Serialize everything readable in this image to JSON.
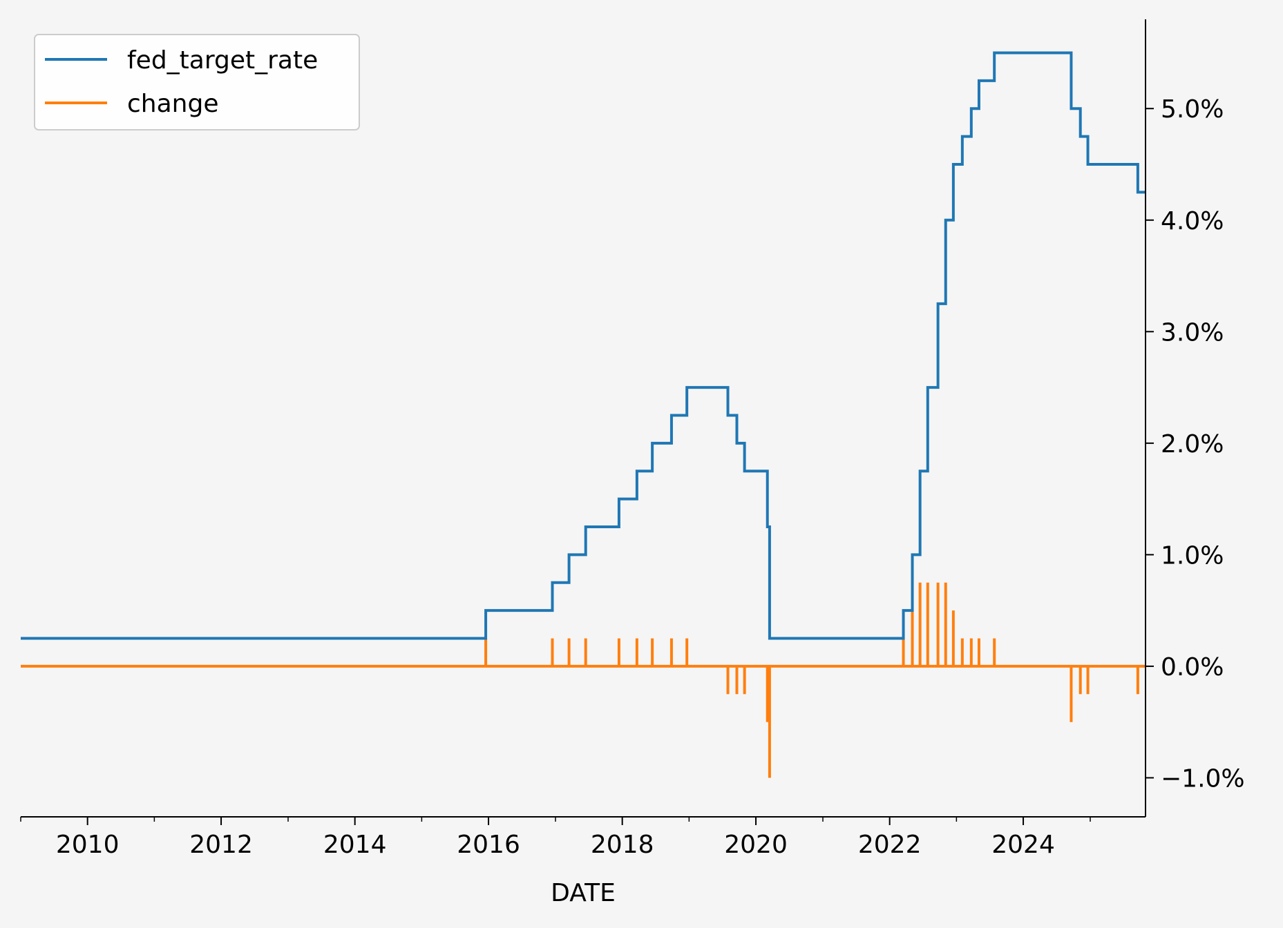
{
  "chart_data": {
    "type": "line",
    "title": "",
    "xlabel": "DATE",
    "ylabel": "",
    "xlim": [
      "2009-01-01",
      "2025-10-30"
    ],
    "ylim": [
      -1.35,
      5.8
    ],
    "y_axis_position": "right",
    "y_tick_format": "percent",
    "x_ticks": [
      "2010",
      "2012",
      "2014",
      "2016",
      "2018",
      "2020",
      "2022",
      "2024"
    ],
    "y_ticks": [
      -1.0,
      0.0,
      1.0,
      2.0,
      3.0,
      4.0,
      5.0
    ],
    "y_tick_labels": [
      "−1.0%",
      "0.0%",
      "1.0%",
      "2.0%",
      "3.0%",
      "4.0%",
      "5.0%"
    ],
    "grid": false,
    "legend_position": "top-left",
    "series": [
      {
        "name": "fed_target_rate",
        "color": "#1f77b4",
        "step": true,
        "points": [
          [
            "2009-01-01",
            0.25
          ],
          [
            "2015-12-17",
            0.5
          ],
          [
            "2016-12-15",
            0.75
          ],
          [
            "2017-03-16",
            1.0
          ],
          [
            "2017-06-15",
            1.25
          ],
          [
            "2017-12-14",
            1.5
          ],
          [
            "2018-03-22",
            1.75
          ],
          [
            "2018-06-14",
            2.0
          ],
          [
            "2018-09-27",
            2.25
          ],
          [
            "2018-12-20",
            2.5
          ],
          [
            "2019-08-01",
            2.25
          ],
          [
            "2019-09-19",
            2.0
          ],
          [
            "2019-10-31",
            1.75
          ],
          [
            "2020-03-04",
            1.25
          ],
          [
            "2020-03-16",
            0.25
          ],
          [
            "2022-03-17",
            0.5
          ],
          [
            "2022-05-05",
            1.0
          ],
          [
            "2022-06-16",
            1.75
          ],
          [
            "2022-07-28",
            2.5
          ],
          [
            "2022-09-22",
            3.25
          ],
          [
            "2022-11-03",
            4.0
          ],
          [
            "2022-12-15",
            4.5
          ],
          [
            "2023-02-02",
            4.75
          ],
          [
            "2023-03-23",
            5.0
          ],
          [
            "2023-05-04",
            5.25
          ],
          [
            "2023-07-27",
            5.5
          ],
          [
            "2024-09-19",
            5.0
          ],
          [
            "2024-11-08",
            4.75
          ],
          [
            "2024-12-19",
            4.5
          ],
          [
            "2025-09-18",
            4.25
          ],
          [
            "2025-10-30",
            4.25
          ]
        ]
      },
      {
        "name": "change",
        "color": "#ff7f0e",
        "baseline": 0.0,
        "points": [
          [
            "2015-12-17",
            0.25
          ],
          [
            "2016-12-15",
            0.25
          ],
          [
            "2017-03-16",
            0.25
          ],
          [
            "2017-06-15",
            0.25
          ],
          [
            "2017-12-14",
            0.25
          ],
          [
            "2018-03-22",
            0.25
          ],
          [
            "2018-06-14",
            0.25
          ],
          [
            "2018-09-27",
            0.25
          ],
          [
            "2018-12-20",
            0.25
          ],
          [
            "2019-08-01",
            -0.25
          ],
          [
            "2019-09-19",
            -0.25
          ],
          [
            "2019-10-31",
            -0.25
          ],
          [
            "2020-03-04",
            -0.5
          ],
          [
            "2020-03-16",
            -1.0
          ],
          [
            "2022-03-17",
            0.25
          ],
          [
            "2022-05-05",
            0.5
          ],
          [
            "2022-06-16",
            0.75
          ],
          [
            "2022-07-28",
            0.75
          ],
          [
            "2022-09-22",
            0.75
          ],
          [
            "2022-11-03",
            0.75
          ],
          [
            "2022-12-15",
            0.5
          ],
          [
            "2023-02-02",
            0.25
          ],
          [
            "2023-03-23",
            0.25
          ],
          [
            "2023-05-04",
            0.25
          ],
          [
            "2023-07-27",
            0.25
          ],
          [
            "2024-09-19",
            -0.5
          ],
          [
            "2024-11-08",
            -0.25
          ],
          [
            "2024-12-19",
            -0.25
          ],
          [
            "2025-09-18",
            -0.25
          ]
        ]
      }
    ]
  }
}
